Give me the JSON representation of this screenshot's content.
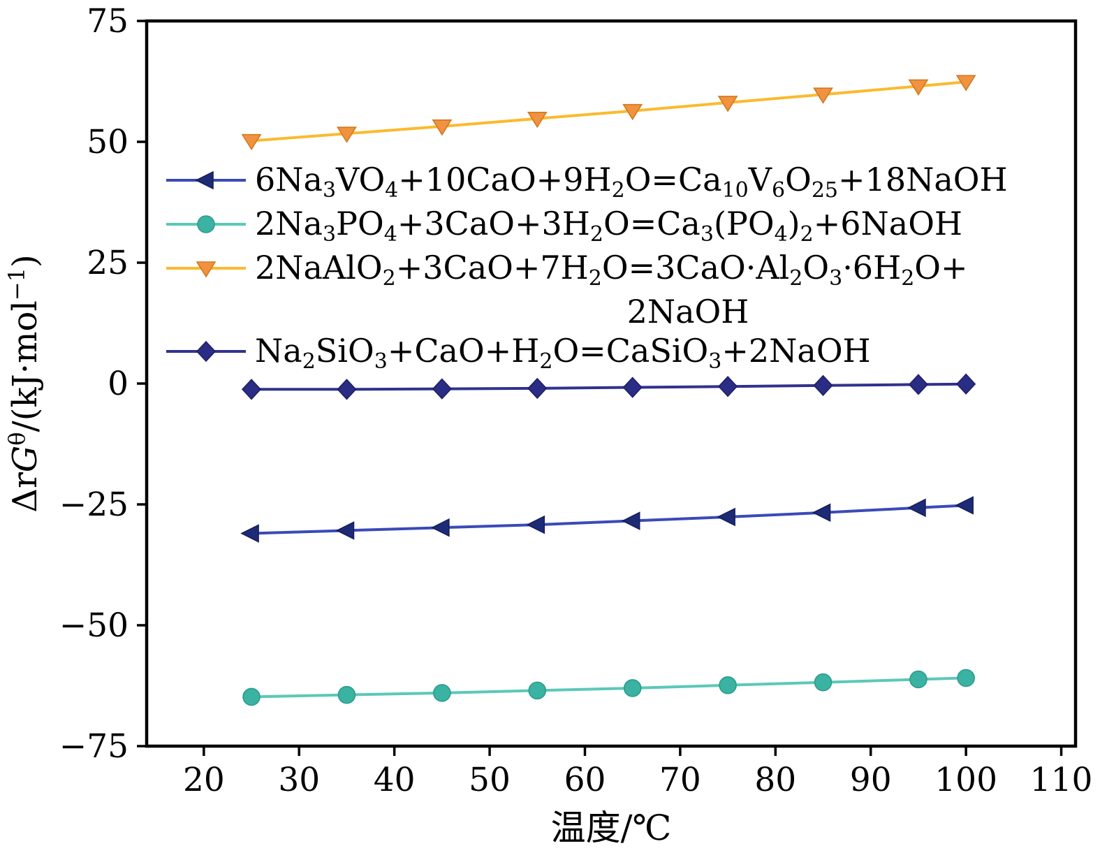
{
  "chart_data": {
    "type": "line",
    "title": "",
    "xlabel": "温度/℃",
    "ylabel_segments": [
      {
        "t": "Δ"
      },
      {
        "t": "r"
      },
      {
        "t": "G",
        "italic": true
      },
      {
        "t": "θ",
        "sup": true
      },
      {
        "t": "/(kJ·mol"
      },
      {
        "t": "−1",
        "sup": true
      },
      {
        "t": ")"
      }
    ],
    "xlim": [
      14,
      111.5
    ],
    "ylim": [
      -75,
      75
    ],
    "xticks": [
      20,
      30,
      40,
      50,
      60,
      70,
      80,
      90,
      100,
      110
    ],
    "yticks": [
      -75,
      -50,
      -25,
      0,
      25,
      50,
      75
    ],
    "grid": false,
    "legend_position": "upper-left-inside",
    "x": [
      25,
      35,
      45,
      55,
      65,
      75,
      85,
      95,
      100
    ],
    "series": [
      {
        "name": "6Na3VO4+10CaO+9H2O=Ca10V6O25+18NaOH",
        "marker": "triangle-left",
        "line_color": "#3a4ab8",
        "marker_color": "#1d2b77",
        "marker_edge": "#151f5c",
        "values": [
          -31,
          -30.4,
          -29.8,
          -29.2,
          -28.4,
          -27.6,
          -26.7,
          -25.7,
          -25.2
        ],
        "label_segments": [
          {
            "t": "6Na"
          },
          {
            "t": "3",
            "sub": true
          },
          {
            "t": "VO"
          },
          {
            "t": "4",
            "sub": true
          },
          {
            "t": "+10CaO+9H"
          },
          {
            "t": "2",
            "sub": true
          },
          {
            "t": "O=Ca"
          },
          {
            "t": "10",
            "sub": true
          },
          {
            "t": "V"
          },
          {
            "t": "6",
            "sub": true
          },
          {
            "t": "O"
          },
          {
            "t": "25",
            "sub": true
          },
          {
            "t": "+18NaOH"
          }
        ]
      },
      {
        "name": "2Na3PO4+3CaO+3H2O=Ca3(PO4)2+6NaOH",
        "marker": "circle",
        "line_color": "#5bc8b8",
        "marker_color": "#3ab3a2",
        "marker_edge": "#2d9b8c",
        "values": [
          -64.8,
          -64.4,
          -64.0,
          -63.5,
          -63.0,
          -62.4,
          -61.8,
          -61.2,
          -60.9
        ],
        "label_segments": [
          {
            "t": "2Na"
          },
          {
            "t": "3",
            "sub": true
          },
          {
            "t": "PO"
          },
          {
            "t": "4",
            "sub": true
          },
          {
            "t": "+3CaO+3H"
          },
          {
            "t": "2",
            "sub": true
          },
          {
            "t": "O=Ca"
          },
          {
            "t": "3",
            "sub": true
          },
          {
            "t": "(PO"
          },
          {
            "t": "4",
            "sub": true
          },
          {
            "t": ")"
          },
          {
            "t": "2",
            "sub": true
          },
          {
            "t": "+6NaOH"
          }
        ]
      },
      {
        "name": "2NaAlO2+3CaO+7H2O=3CaO·Al2O3·6H2O+2NaOH",
        "marker": "triangle-down",
        "line_color": "#fbba2e",
        "marker_color": "#f0923f",
        "marker_edge": "#d2791f",
        "values": [
          50.2,
          51.7,
          53.2,
          54.8,
          56.4,
          58.1,
          59.8,
          61.5,
          62.4
        ],
        "label_segments": [
          {
            "t": "2NaAlO"
          },
          {
            "t": "2",
            "sub": true
          },
          {
            "t": "+3CaO+7H"
          },
          {
            "t": "2",
            "sub": true
          },
          {
            "t": "O=3CaO·Al"
          },
          {
            "t": "2",
            "sub": true
          },
          {
            "t": "O"
          },
          {
            "t": "3",
            "sub": true
          },
          {
            "t": "·6H"
          },
          {
            "t": "2",
            "sub": true
          },
          {
            "t": "O+"
          }
        ],
        "label2_segments": [
          {
            "t": "2NaOH"
          }
        ]
      },
      {
        "name": "Na2SiO3+CaO+H2O=CaSiO3+2NaOH",
        "marker": "diamond",
        "line_color": "#31328e",
        "marker_color": "#2b2c83",
        "marker_edge": "#1f2066",
        "values": [
          -1.2,
          -1.2,
          -1.1,
          -1.0,
          -0.8,
          -0.6,
          -0.4,
          -0.2,
          -0.1
        ],
        "label_segments": [
          {
            "t": "Na"
          },
          {
            "t": "2",
            "sub": true
          },
          {
            "t": "SiO"
          },
          {
            "t": "3",
            "sub": true
          },
          {
            "t": "+CaO+H"
          },
          {
            "t": "2",
            "sub": true
          },
          {
            "t": "O=CaSiO"
          },
          {
            "t": "3",
            "sub": true
          },
          {
            "t": "+2NaOH"
          }
        ]
      }
    ]
  }
}
